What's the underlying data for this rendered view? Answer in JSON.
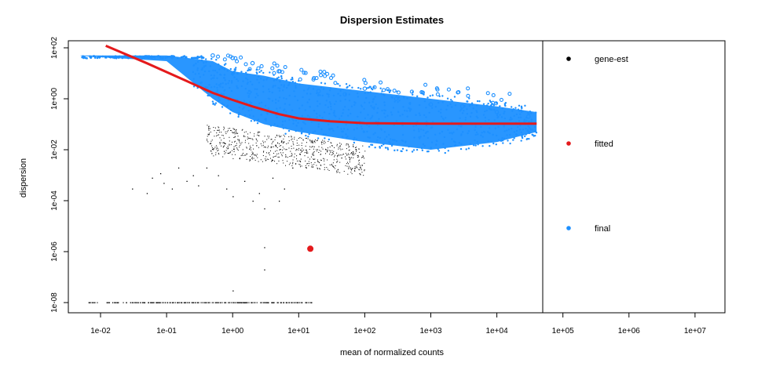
{
  "chart_data": {
    "type": "scatter",
    "title": "Dispersion Estimates",
    "xlabel": "mean of normalized counts",
    "ylabel": "dispersion",
    "x_scale": "log10",
    "y_scale": "log10",
    "xlim": [
      0.002,
      30000000
    ],
    "ylim": [
      5e-09,
      150
    ],
    "x_ticks": [
      {
        "value": 0.01,
        "label": "1e-02"
      },
      {
        "value": 0.1,
        "label": "1e-01"
      },
      {
        "value": 1,
        "label": "1e+00"
      },
      {
        "value": 10,
        "label": "1e+01"
      },
      {
        "value": 100,
        "label": "1e+02"
      },
      {
        "value": 1000,
        "label": "1e+03"
      },
      {
        "value": 10000,
        "label": "1e+04"
      },
      {
        "value": 100000,
        "label": "1e+05"
      },
      {
        "value": 1000000,
        "label": "1e+06"
      },
      {
        "value": 10000000,
        "label": "1e+07"
      }
    ],
    "y_ticks": [
      {
        "value": 1e-08,
        "label": "1e-08"
      },
      {
        "value": 1e-06,
        "label": "1e-06"
      },
      {
        "value": 0.0001,
        "label": "1e-04"
      },
      {
        "value": 0.01,
        "label": "1e-02"
      },
      {
        "value": 1,
        "label": "1e+00"
      },
      {
        "value": 100,
        "label": "1e+02"
      }
    ],
    "series": [
      {
        "name": "gene-est",
        "color": "#000000",
        "approx_points": [
          [
            0.005,
            1e-08
          ],
          [
            0.02,
            1e-08
          ],
          [
            0.1,
            1e-08
          ],
          [
            1,
            1e-08
          ],
          [
            5,
            1e-08
          ],
          [
            10,
            1e-08
          ],
          [
            0.03,
            0.0003
          ],
          [
            0.05,
            0.0003
          ],
          [
            0.07,
            0.0007
          ],
          [
            0.1,
            0.001
          ],
          [
            0.2,
            0.0005
          ],
          [
            0.3,
            0.0015
          ],
          [
            0.5,
            0.01
          ],
          [
            1,
            0.02
          ],
          [
            3,
            0.005
          ],
          [
            10,
            0.01
          ],
          [
            30,
            0.01
          ],
          [
            2,
            0.0001
          ],
          [
            3,
            5e-05
          ],
          [
            3,
            1.5e-06
          ],
          [
            5,
            0.0001
          ]
        ]
      },
      {
        "name": "fitted",
        "color": "#e41a1c",
        "line": [
          [
            0.012,
            120
          ],
          [
            0.05,
            25
          ],
          [
            0.2,
            5
          ],
          [
            0.5,
            1.7
          ],
          [
            1,
            0.9
          ],
          [
            2,
            0.5
          ],
          [
            5,
            0.25
          ],
          [
            10,
            0.17
          ],
          [
            30,
            0.13
          ],
          [
            100,
            0.11
          ],
          [
            1000,
            0.105
          ],
          [
            40000,
            0.105
          ]
        ],
        "outlier": [
          15,
          1.3e-06
        ]
      },
      {
        "name": "final",
        "color": "#1e90ff",
        "cloud_upper": [
          [
            0.005,
            50
          ],
          [
            0.1,
            50
          ],
          [
            0.5,
            30
          ],
          [
            1,
            12
          ],
          [
            3,
            8
          ],
          [
            10,
            4
          ],
          [
            100,
            2
          ],
          [
            1000,
            1
          ],
          [
            10000,
            0.5
          ],
          [
            40000,
            0.3
          ]
        ],
        "cloud_lower": [
          [
            0.005,
            48
          ],
          [
            0.1,
            30
          ],
          [
            0.5,
            1
          ],
          [
            1,
            0.3
          ],
          [
            3,
            0.1
          ],
          [
            10,
            0.05
          ],
          [
            100,
            0.02
          ],
          [
            1000,
            0.01
          ],
          [
            10000,
            0.02
          ],
          [
            40000,
            0.05
          ]
        ],
        "outliers": [
          [
            0.5,
            50
          ],
          [
            1,
            40
          ],
          [
            2,
            25
          ],
          [
            5,
            12
          ],
          [
            20,
            2
          ],
          [
            50,
            1.5
          ],
          [
            100,
            2.5
          ],
          [
            300,
            1
          ],
          [
            1000,
            0.6
          ],
          [
            3000,
            0.5
          ],
          [
            10000,
            0.3
          ],
          [
            30000,
            0.2
          ]
        ]
      }
    ],
    "legend": {
      "placement": "right",
      "entries": [
        {
          "label": "gene-est",
          "color": "#000000"
        },
        {
          "label": "fitted",
          "color": "#e41a1c"
        },
        {
          "label": "final",
          "color": "#1e90ff"
        }
      ]
    },
    "grid": false
  }
}
